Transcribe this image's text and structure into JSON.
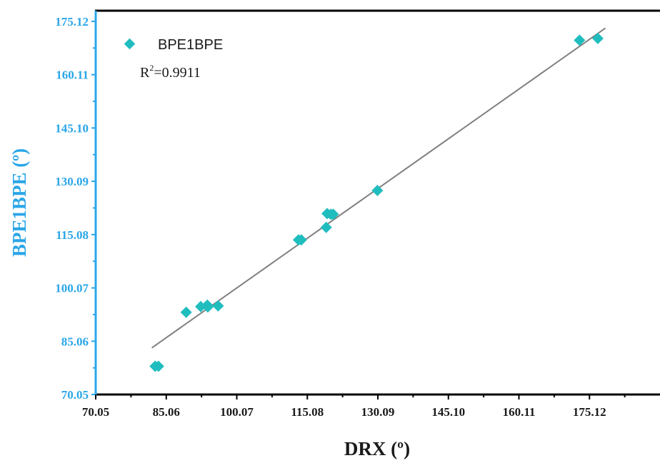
{
  "chart_data": {
    "type": "scatter",
    "xlabel": "DRX (º)",
    "ylabel": "BPE1BPE (º)",
    "xlim": [
      70.05,
      190.13
    ],
    "ylim": [
      70.05,
      178.12
    ],
    "x_ticks": [
      "70.05",
      "85.06",
      "100.07",
      "115.08",
      "130.09",
      "145.10",
      "160.11",
      "175.12"
    ],
    "y_ticks": [
      "70.05",
      "85.06",
      "100.07",
      "115.08",
      "130.09",
      "145.10",
      "160.11",
      "175.12"
    ],
    "legend": {
      "label": "BPE1BPE",
      "position": "top-left"
    },
    "annotation": {
      "r2_prefix": "R",
      "r2_sup": "2",
      "r2_value": "=0.9911"
    },
    "grid": false,
    "colors": {
      "marker": "#20bdbf",
      "fit_line": "#7f7f7f",
      "left_axis": "#2aa6e8",
      "frame": "#000000"
    },
    "series": [
      {
        "name": "BPE1BPE",
        "x": [
          82.7,
          83.4,
          89.3,
          92.4,
          93.8,
          93.9,
          96.1,
          113.2,
          113.8,
          119.1,
          119.3,
          120.1,
          120.6,
          130.0,
          173.0,
          176.9
        ],
        "y": [
          78.0,
          78.0,
          93.2,
          94.8,
          95.2,
          94.7,
          95.0,
          113.6,
          113.6,
          117.1,
          121.0,
          120.8,
          120.8,
          127.5,
          169.8,
          170.3
        ]
      }
    ],
    "fit_line": {
      "x": [
        82.0,
        178.5
      ],
      "y": [
        83.2,
        173.2
      ]
    }
  }
}
